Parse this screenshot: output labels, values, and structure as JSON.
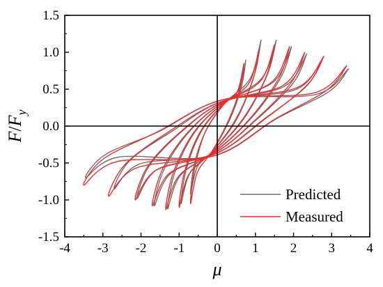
{
  "chart_data": {
    "type": "line",
    "title": "",
    "xlabel": "μ",
    "ylabel_main": "F",
    "ylabel_sep": "/",
    "ylabel_denom": "F",
    "ylabel_sub": "y",
    "xlim": [
      -4,
      4
    ],
    "ylim": [
      -1.5,
      1.5
    ],
    "x_ticks": [
      -4,
      -3,
      -2,
      -1,
      0,
      1,
      2,
      3,
      4
    ],
    "y_ticks": [
      -1.5,
      -1.0,
      -0.5,
      0.0,
      0.5,
      1.0,
      1.5
    ],
    "x_tick_labels": [
      "-4",
      "-3",
      "-2",
      "-1",
      "0",
      "1",
      "2",
      "3",
      "4"
    ],
    "y_tick_labels": [
      "-1.5",
      "-1.0",
      "-0.5",
      "0.0",
      "0.5",
      "1.0",
      "1.5"
    ],
    "grid": false,
    "reference_lines": {
      "x0": true,
      "y0": true
    },
    "legend_position": "bottom-right",
    "legend": [
      "Predicted",
      "Measured"
    ],
    "series": [
      {
        "name": "Predicted",
        "color": "#6e6e6e",
        "cycles": [
          {
            "pos": [
              0.75,
              0.9
            ],
            "neg": [
              -0.7,
              -0.92
            ]
          },
          {
            "pos": [
              1.15,
              1.17
            ],
            "neg": [
              -0.95,
              -1.05
            ]
          },
          {
            "pos": [
              1.55,
              1.17
            ],
            "neg": [
              -1.3,
              -1.12
            ]
          },
          {
            "pos": [
              1.95,
              1.08
            ],
            "neg": [
              -1.65,
              -1.08
            ]
          },
          {
            "pos": [
              2.35,
              0.98
            ],
            "neg": [
              -2.1,
              -0.98
            ]
          },
          {
            "pos": [
              2.75,
              0.9
            ],
            "neg": [
              -2.7,
              -0.85
            ]
          },
          {
            "pos": [
              3.45,
              0.78
            ],
            "neg": [
              -3.45,
              -0.7
            ]
          }
        ]
      },
      {
        "name": "Measured",
        "color": "#ee2b2b",
        "cycles": [
          {
            "pos": [
              0.7,
              0.85
            ],
            "neg": [
              -0.7,
              -1.05
            ]
          },
          {
            "pos": [
              1.1,
              1.05
            ],
            "neg": [
              -1.0,
              -1.1
            ]
          },
          {
            "pos": [
              1.5,
              1.1
            ],
            "neg": [
              -1.35,
              -1.13
            ]
          },
          {
            "pos": [
              1.9,
              1.08
            ],
            "neg": [
              -1.7,
              -1.08
            ]
          },
          {
            "pos": [
              2.3,
              1.0
            ],
            "neg": [
              -2.15,
              -1.0
            ]
          },
          {
            "pos": [
              2.8,
              0.95
            ],
            "neg": [
              -2.85,
              -0.95
            ]
          },
          {
            "pos": [
              3.4,
              0.82
            ],
            "neg": [
              -3.5,
              -0.8
            ]
          }
        ]
      }
    ]
  }
}
